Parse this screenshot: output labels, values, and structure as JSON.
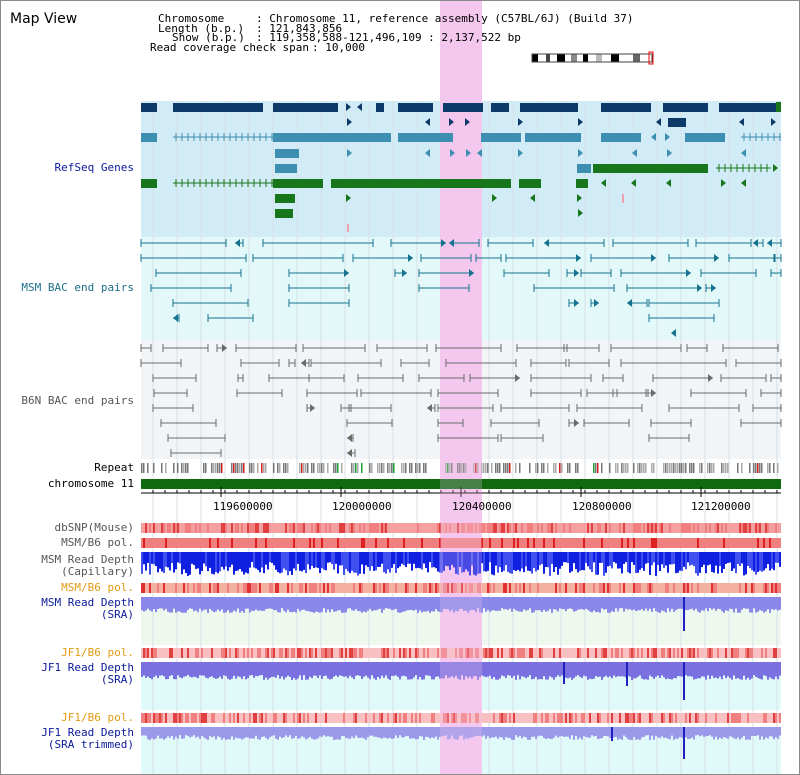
{
  "view_title": "Map View",
  "header": {
    "chrom_label": "Chromosome",
    "chrom_value": ": Chromosome 11, reference assembly (C57BL/6J) (Build 37)",
    "length_label": "Length (b.p.)",
    "length_value": ": 121,843,856",
    "show_label": "Show (b.p.)",
    "show_value": ": 119,358,588-121,496,109 : 2,137,522 bp",
    "coverage_label": "Read coverage check span",
    "coverage_value": ": 10,000"
  },
  "tracks": {
    "refseq": "RefSeq Genes",
    "msm_bac": "MSM BAC end pairs",
    "b6n_bac": "B6N BAC end pairs",
    "repeat": "Repeat",
    "chromosome": "chromosome 11",
    "dbsnp": "dbSNP(Mouse)",
    "msm_b6_pol_1": "MSM/B6 pol.",
    "msm_read_depth_cap_1": "MSM Read Depth",
    "msm_read_depth_cap_2": "(Capillary)",
    "msm_b6_pol_2": "MSM/B6 pol.",
    "msm_read_depth_sra_1": "MSM Read Depth",
    "msm_read_depth_sra_2": "(SRA)",
    "jf1_b6_pol_1": "JF1/B6 pol.",
    "jf1_read_depth_sra_1": "JF1 Read Depth",
    "jf1_read_depth_sra_2": "(SRA)",
    "jf1_b6_pol_2": "JF1/B6 pol.",
    "jf1_read_depth_trim_1": "JF1 Read Depth",
    "jf1_read_depth_trim_2": "(SRA trimmed)"
  },
  "axis_ticks": [
    "119600000",
    "120000000",
    "120400000",
    "120800000",
    "121200000"
  ],
  "colors": {
    "refseq_bg": "#d2ecf7",
    "msm_bac_bg": "#e3f8f8",
    "b6n_bac_bg": "#f1f5f8",
    "highlight": "#f5c8ee",
    "dark_gene": "#0e3a6a",
    "light_gene": "#3d8fb2",
    "green_gene": "#17751a",
    "msm_bac_line": "#15738f",
    "b6n_bac_line": "#6a6a6a",
    "label_blue": "#0a1a9a",
    "label_teal": "#1d6f8a",
    "label_gray": "#555555",
    "label_orange": "#e39a13"
  }
}
